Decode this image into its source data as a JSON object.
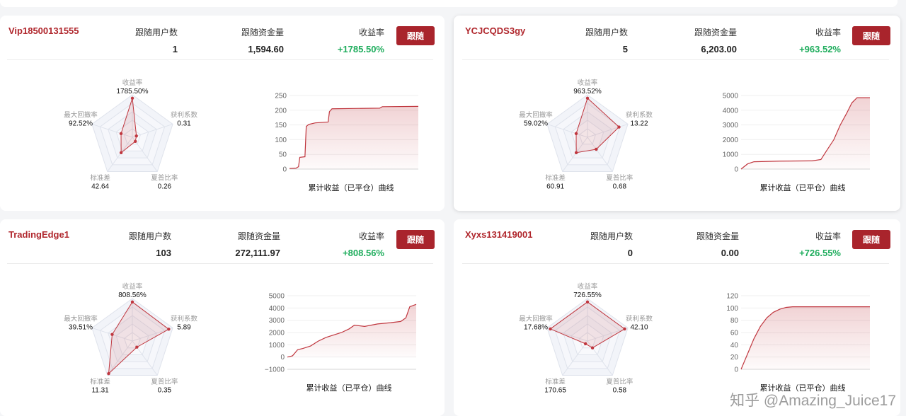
{
  "colors": {
    "accent": "#a9242c",
    "name": "#b0272d",
    "positive": "#1fad5d",
    "line": "#c0373f"
  },
  "cards": [
    {
      "name": "Vip18500131555",
      "followers_label": "跟随用户数",
      "followers": "1",
      "funds_label": "跟随资金量",
      "funds": "1,594.60",
      "return_label": "收益率",
      "return": "+1785.50%",
      "button": "跟随",
      "radar": {
        "labels": [
          "收益率",
          "获利系数",
          "夏普比率",
          "标准差",
          "最大回撤率"
        ],
        "values": [
          "1785.50%",
          "0.31",
          "0.26",
          "42.64",
          "92.52%"
        ],
        "levels": [
          0.92,
          0.1,
          0.12,
          0.45,
          0.28
        ]
      },
      "curve": {
        "title": "累计收益（已平仓）曲线",
        "yticks": [
          "250",
          "200",
          "150",
          "100",
          "50",
          "0"
        ],
        "ylim": [
          0,
          250
        ],
        "points": [
          [
            0,
            2
          ],
          [
            0.05,
            3
          ],
          [
            0.07,
            8
          ],
          [
            0.08,
            40
          ],
          [
            0.12,
            42
          ],
          [
            0.13,
            145
          ],
          [
            0.15,
            152
          ],
          [
            0.2,
            157
          ],
          [
            0.3,
            160
          ],
          [
            0.31,
            195
          ],
          [
            0.33,
            205
          ],
          [
            0.5,
            206
          ],
          [
            0.7,
            207
          ],
          [
            0.72,
            212
          ],
          [
            1,
            213
          ]
        ]
      }
    },
    {
      "name": "YCJCQDS3gy",
      "followers_label": "跟随用户数",
      "followers": "5",
      "funds_label": "跟随资金量",
      "funds": "6,203.00",
      "return_label": "收益率",
      "return": "+963.52%",
      "button": "跟随",
      "radar": {
        "labels": [
          "收益率",
          "获利系数",
          "夏普比率",
          "标准差",
          "最大回撤率"
        ],
        "values": [
          "963.52%",
          "13.22",
          "0.68",
          "60.91",
          "59.02%"
        ],
        "levels": [
          0.92,
          0.78,
          0.35,
          0.45,
          0.28
        ]
      },
      "curve": {
        "title": "累计收益（已平仓）曲线",
        "yticks": [
          "5000",
          "4000",
          "3000",
          "2000",
          "1000",
          "0"
        ],
        "ylim": [
          0,
          5000
        ],
        "points": [
          [
            0,
            0
          ],
          [
            0.05,
            350
          ],
          [
            0.1,
            500
          ],
          [
            0.3,
            540
          ],
          [
            0.55,
            560
          ],
          [
            0.62,
            650
          ],
          [
            0.66,
            1200
          ],
          [
            0.72,
            2000
          ],
          [
            0.77,
            3000
          ],
          [
            0.82,
            3800
          ],
          [
            0.86,
            4500
          ],
          [
            0.9,
            4850
          ],
          [
            1,
            4850
          ]
        ]
      }
    },
    {
      "name": "TradingEdge1",
      "followers_label": "跟随用户数",
      "followers": "103",
      "funds_label": "跟随资金量",
      "funds": "272,111.97",
      "return_label": "收益率",
      "return": "+808.56%",
      "button": "跟随",
      "radar": {
        "labels": [
          "收益率",
          "获利系数",
          "夏普比率",
          "标准差",
          "最大回撤率"
        ],
        "values": [
          "808.56%",
          "5.89",
          "0.35",
          "11.31",
          "39.51%"
        ],
        "levels": [
          0.92,
          0.9,
          0.18,
          0.95,
          0.5
        ]
      },
      "curve": {
        "title": "累计收益（已平仓）曲线",
        "yticks": [
          "5000",
          "4000",
          "3000",
          "2000",
          "1000",
          "0",
          "−1000"
        ],
        "ylim": [
          -1000,
          5000
        ],
        "points": [
          [
            0,
            0
          ],
          [
            0.04,
            100
          ],
          [
            0.08,
            600
          ],
          [
            0.12,
            700
          ],
          [
            0.18,
            900
          ],
          [
            0.24,
            1300
          ],
          [
            0.3,
            1600
          ],
          [
            0.36,
            1800
          ],
          [
            0.42,
            2000
          ],
          [
            0.48,
            2300
          ],
          [
            0.52,
            2600
          ],
          [
            0.6,
            2500
          ],
          [
            0.7,
            2700
          ],
          [
            0.8,
            2800
          ],
          [
            0.88,
            2900
          ],
          [
            0.92,
            3200
          ],
          [
            0.95,
            4100
          ],
          [
            1,
            4300
          ]
        ]
      }
    },
    {
      "name": "Xyxs131419001",
      "followers_label": "跟随用户数",
      "followers": "0",
      "funds_label": "跟随资金量",
      "funds": "0.00",
      "return_label": "收益率",
      "return": "+726.55%",
      "button": "跟随",
      "radar": {
        "labels": [
          "收益率",
          "获利系数",
          "夏普比率",
          "标准差",
          "最大回撤率"
        ],
        "values": [
          "726.55%",
          "42.10",
          "0.58",
          "170.65",
          "17.68%"
        ],
        "levels": [
          0.92,
          0.92,
          0.2,
          0.08,
          0.92
        ]
      },
      "curve": {
        "title": "累计收益（已平仓）曲线",
        "yticks": [
          "120",
          "100",
          "80",
          "60",
          "40",
          "20",
          "0"
        ],
        "ylim": [
          0,
          120
        ],
        "points": [
          [
            0,
            0
          ],
          [
            0.05,
            25
          ],
          [
            0.1,
            50
          ],
          [
            0.15,
            70
          ],
          [
            0.2,
            84
          ],
          [
            0.25,
            93
          ],
          [
            0.3,
            98
          ],
          [
            0.35,
            101
          ],
          [
            0.4,
            102
          ],
          [
            1,
            102
          ]
        ]
      }
    }
  ],
  "watermark": "知乎 @Amazing_Juice17"
}
